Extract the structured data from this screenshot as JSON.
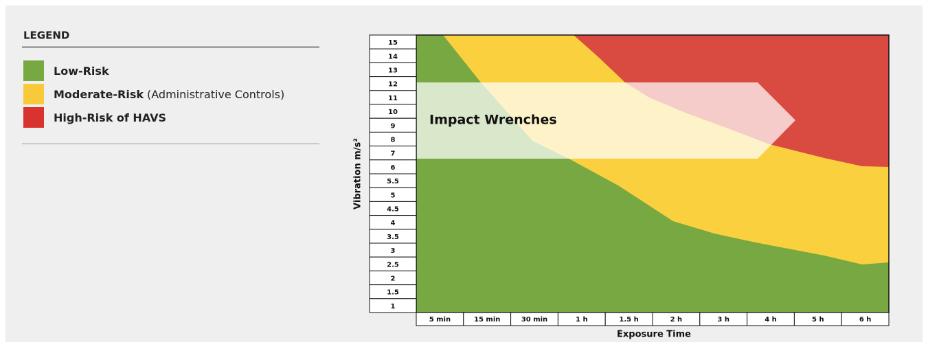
{
  "legend": {
    "title": "LEGEND",
    "items": [
      {
        "label": "Low-Risk",
        "note": null,
        "color": "#78a842"
      },
      {
        "label": "Moderate-Risk",
        "note": "(Administrative Controls)",
        "color": "#f8c93a"
      },
      {
        "label": "High-Risk of HAVS",
        "note": null,
        "color": "#d9332f"
      }
    ]
  },
  "chart": {
    "y_axis_title": "Vibration m/s²",
    "y_labels": [
      "15",
      "14",
      "13",
      "12",
      "11",
      "10",
      "9",
      "8",
      "7",
      "6",
      "5.5",
      "5",
      "4.5",
      "4",
      "3.5",
      "3",
      "2.5",
      "2",
      "1.5",
      "1"
    ],
    "x_axis_title": "Exposure Time",
    "x_labels": [
      "5 min",
      "15 min",
      "30 min",
      "1 h",
      "1.5 h",
      "2 h",
      "3 h",
      "4 h",
      "5 h",
      "6 h"
    ],
    "annotation": "Impact Wrenches"
  }
}
